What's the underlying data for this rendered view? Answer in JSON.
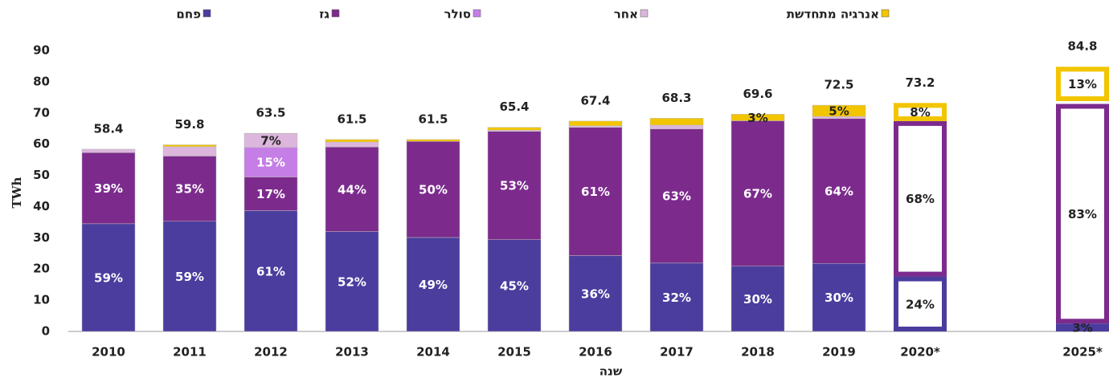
{
  "chart_data": {
    "type": "stacked_bar",
    "x_label": "שנה",
    "y_label": "TWh",
    "categories": [
      "2010",
      "2011",
      "2012",
      "2013",
      "2014",
      "2015",
      "2016",
      "2017",
      "2018",
      "2019",
      "2020*",
      null,
      "2025*"
    ],
    "totals": [
      58.4,
      59.8,
      63.5,
      61.5,
      61.5,
      65.4,
      67.4,
      68.3,
      69.6,
      72.5,
      73.2,
      null,
      84.8
    ],
    "outlined": [
      10,
      12
    ],
    "series": [
      {
        "name": "פחם",
        "color": "#4a3d9e",
        "values": [
          34.5,
          35.3,
          38.7,
          32.0,
          30.1,
          29.4,
          24.3,
          21.9,
          20.9,
          21.8,
          17.6,
          null,
          2.5
        ],
        "share_labels": [
          "59%",
          "59%",
          "61%",
          "52%",
          "49%",
          "45%",
          "36%",
          "32%",
          "30%",
          "30%",
          "24%",
          null,
          "3%"
        ]
      },
      {
        "name": "גז",
        "color": "#7c2b8d",
        "values": [
          22.8,
          20.9,
          10.8,
          27.1,
          30.8,
          34.7,
          41.1,
          43.0,
          46.6,
          46.4,
          49.8,
          null,
          70.4
        ],
        "share_labels": [
          "39%",
          "35%",
          "17%",
          "44%",
          "50%",
          "53%",
          "61%",
          "63%",
          "67%",
          "64%",
          "68%",
          null,
          "83%"
        ]
      },
      {
        "name": "סולר",
        "color": "#c57ee6",
        "values": [
          0,
          0,
          9.5,
          0,
          0,
          0,
          0,
          0,
          0,
          0,
          0,
          null,
          0
        ],
        "share_labels": [
          null,
          null,
          "15%",
          null,
          null,
          null,
          null,
          null,
          null,
          null,
          null,
          null,
          null
        ]
      },
      {
        "name": "אחר",
        "color": "#dcb6dc",
        "values": [
          1.1,
          3.0,
          4.4,
          1.6,
          0.0,
          0.4,
          0.5,
          1.2,
          0.0,
          0.7,
          0,
          null,
          0.9
        ],
        "share_labels": [
          null,
          null,
          "7%",
          null,
          null,
          null,
          null,
          null,
          null,
          null,
          null,
          null,
          null
        ]
      },
      {
        "name": "אנרגיה מתחדשת",
        "color": "#f2c500",
        "values": [
          0,
          0.6,
          0.1,
          0.8,
          0.6,
          0.9,
          1.5,
          2.2,
          2.1,
          3.6,
          5.8,
          null,
          11.0
        ],
        "share_labels": [
          null,
          null,
          null,
          null,
          null,
          null,
          null,
          null,
          "3%",
          "5%",
          "8%",
          null,
          "13%"
        ]
      }
    ],
    "ylim": [
      0,
      90
    ],
    "yticks": [
      0,
      10,
      20,
      30,
      40,
      50,
      60,
      70,
      80,
      90
    ],
    "legend": "top"
  }
}
